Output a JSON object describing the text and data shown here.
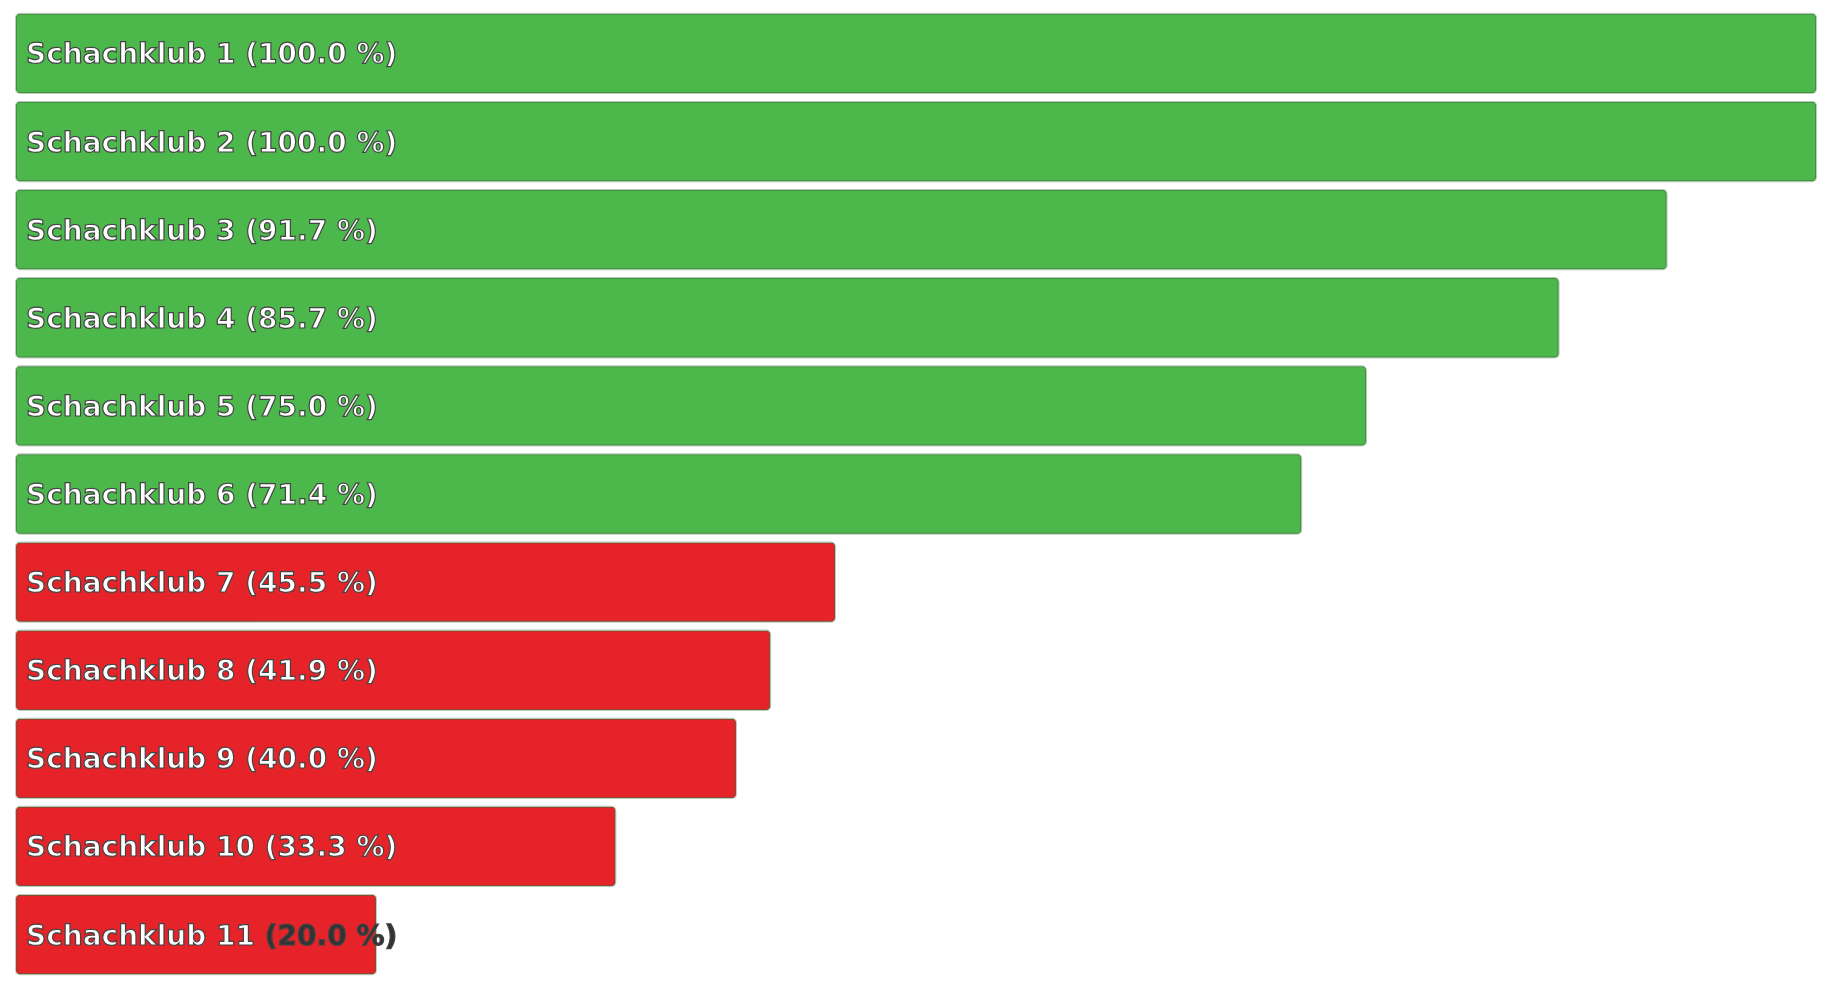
{
  "chart_data": {
    "type": "bar",
    "orientation": "horizontal",
    "categories": [
      "Schachklub 1",
      "Schachklub 2",
      "Schachklub 3",
      "Schachklub 4",
      "Schachklub 5",
      "Schachklub 6",
      "Schachklub 7",
      "Schachklub 8",
      "Schachklub 9",
      "Schachklub 10",
      "Schachklub 11"
    ],
    "values": [
      100.0,
      100.0,
      91.7,
      85.7,
      75.0,
      71.4,
      45.5,
      41.9,
      40.0,
      33.3,
      20.0
    ],
    "value_labels": [
      "(100.0 %)",
      "(100.0 %)",
      "(91.7 %)",
      "(85.7 %)",
      "(75.0 %)",
      "(71.4 %)",
      "(45.5 %)",
      "(41.9 %)",
      "(40.0 %)",
      "(33.3 %)",
      "(20.0 %)"
    ],
    "colors": [
      "#4cb84c",
      "#4cb84c",
      "#4cb84c",
      "#4cb84c",
      "#4cb84c",
      "#4cb84c",
      "#e52329",
      "#e52329",
      "#e52329",
      "#e52329",
      "#e52329"
    ]
  }
}
